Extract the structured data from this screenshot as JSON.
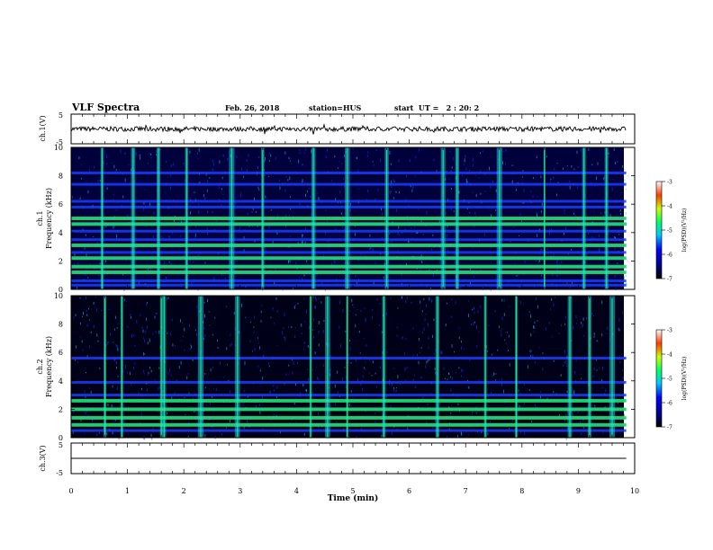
{
  "header": {
    "title": "VLF Spectra",
    "date": "Feb. 26, 2018",
    "station": "station=HUS",
    "start": "start  UT =   2 : 20: 2"
  },
  "colors": {
    "background_dark": "#00003c",
    "band_blue": "#1a3cff",
    "cyan": "#19d2ff",
    "green": "#22ff55",
    "colormap": [
      "#000000",
      "#00007d",
      "#0000ff",
      "#00c8ff",
      "#00ff64",
      "#c8ff00",
      "#ff3c00",
      "#ffffff"
    ]
  },
  "chart_data": [
    {
      "type": "line",
      "name": "ch1-waveform",
      "ylabel": "ch.1(V)",
      "yticks": [
        "5",
        "-5"
      ],
      "ylim": [
        -5,
        5
      ],
      "x_range": [
        0,
        9.85
      ],
      "signal_level": 0,
      "noise_amplitude": 0.8,
      "note_text": ""
    },
    {
      "type": "heatmap",
      "name": "ch1-spectrogram",
      "ylabel": "ch.1\nFrequency (kHz)",
      "yticks": [
        "0",
        "2",
        "4",
        "6",
        "8",
        "10"
      ],
      "ylim": [
        0,
        10
      ],
      "x_range": [
        0,
        9.85
      ],
      "horizontal_bands_khz": [
        0.3,
        0.6,
        1.2,
        1.6,
        2.2,
        2.6,
        3.1,
        3.5,
        4.1,
        4.6,
        5.0,
        5.8,
        6.2,
        7.4,
        8.2
      ],
      "bright_bands_khz": [
        1.2,
        1.6,
        2.2,
        3.1,
        4.6,
        5.0
      ],
      "vertical_bursts_min": [
        0.55,
        1.1,
        1.55,
        2.05,
        2.85,
        3.4,
        4.3,
        4.9,
        5.6,
        6.6,
        6.85,
        7.6,
        8.4,
        9.1,
        9.5
      ],
      "colorbar": {
        "label": "log(PSD)(V²/Hz)",
        "ticks": [
          "-3",
          "-4",
          "-5",
          "-6",
          "-7"
        ],
        "range": [
          -7,
          -3
        ]
      }
    },
    {
      "type": "heatmap",
      "name": "ch2-spectrogram",
      "ylabel": "ch.2\nFrequency (kHz)",
      "yticks": [
        "0",
        "2",
        "4",
        "6",
        "8",
        "10"
      ],
      "ylim": [
        0,
        10
      ],
      "x_range": [
        0,
        9.85
      ],
      "horizontal_bands_khz": [
        0.5,
        0.9,
        1.4,
        2.0,
        2.6,
        3.0,
        3.9,
        5.6
      ],
      "bright_bands_khz": [
        0.9,
        1.4,
        2.0,
        2.6
      ],
      "vertical_bursts_min": [
        0.6,
        0.9,
        1.6,
        1.65,
        2.3,
        2.95,
        4.25,
        4.55,
        4.9,
        5.55,
        6.5,
        7.35,
        7.9,
        8.85,
        9.2,
        9.6
      ],
      "colorbar": {
        "label": "log(PSD)(V²/Hz)",
        "ticks": [
          "-3",
          "-4",
          "-5",
          "-6",
          "-7"
        ],
        "range": [
          -7,
          -3
        ]
      }
    },
    {
      "type": "line",
      "name": "ch3-waveform",
      "ylabel": "ch.3(V)",
      "yticks": [
        "5",
        "-5"
      ],
      "ylim": [
        -5,
        5
      ],
      "x_range": [
        0,
        9.85
      ],
      "signal_level": 0,
      "noise_amplitude": 0
    }
  ],
  "xaxis": {
    "label": "Time (min)",
    "ticks": [
      "0",
      "1",
      "2",
      "3",
      "4",
      "5",
      "6",
      "7",
      "8",
      "9",
      "10"
    ],
    "range": [
      0,
      10
    ]
  }
}
